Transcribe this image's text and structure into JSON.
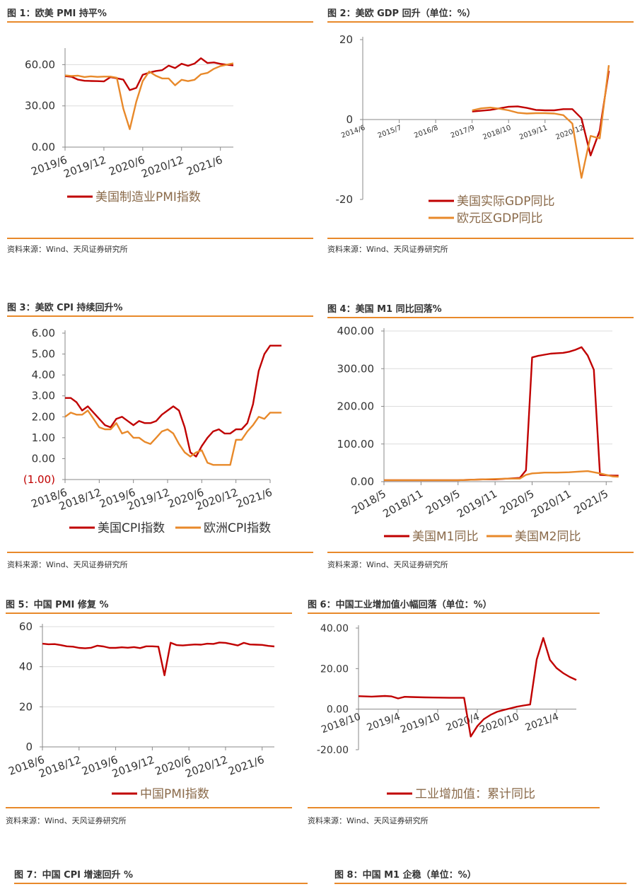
{
  "source_text": "资料来源：Wind、天风证券研究所",
  "colors": {
    "red": "#c00000",
    "orange": "#e8892a",
    "axis": "#888888",
    "grid": "#d9d9d9",
    "neg": "#c00000"
  },
  "figures": {
    "f1": {
      "title": "图 1：欧美 PMI 持平%"
    },
    "f2": {
      "title": "图 2：美欧 GDP 回升（单位：%）"
    },
    "f3": {
      "title": "图 3：美欧 CPI 持续回升%"
    },
    "f4": {
      "title": "图 4：美国 M1 同比回落%"
    },
    "f5": {
      "title": "图 5：中国 PMI 修复 %"
    },
    "f6": {
      "title": "图 6：中国工业增加值小幅回落（单位：%）"
    },
    "f7": {
      "title": "图 7：中国 CPI 增速回升 %"
    },
    "f8": {
      "title": "图 8：中国 M1 企稳（单位：%）"
    }
  },
  "chart_data": [
    {
      "id": "f1",
      "type": "line",
      "xlim": [
        0,
        26
      ],
      "ylim": [
        0,
        70
      ],
      "ytick_values": [
        0,
        30,
        60
      ],
      "ytick_labels": [
        "0.00",
        "30.00",
        "60.00"
      ],
      "xtick_positions": [
        0,
        6,
        12,
        18,
        24
      ],
      "xtick_labels": [
        "2019/6",
        "2019/12",
        "2020/6",
        "2020/12",
        "2021/6"
      ],
      "grid": true,
      "legend": "bottom",
      "series": [
        {
          "name": "美国制造业PMI指数",
          "color": "#c00000",
          "x": [
            0,
            1,
            2,
            3,
            4,
            5,
            6,
            7,
            8,
            9,
            10,
            11,
            12,
            13,
            14,
            15,
            16,
            17,
            18,
            19,
            20,
            21,
            22,
            23,
            24,
            25,
            26
          ],
          "values": [
            51.7,
            51.2,
            49.1,
            48.3,
            48.1,
            48.0,
            47.8,
            50.9,
            50.1,
            49.1,
            41.5,
            43.1,
            52.6,
            54.2,
            55.4,
            56.0,
            59.3,
            57.5,
            60.7,
            59.2,
            60.8,
            64.7,
            61.2,
            61.6,
            60.6,
            59.9,
            59.5
          ]
        },
        {
          "name": "",
          "color": "#e8892a",
          "x": [
            0,
            1,
            2,
            3,
            4,
            5,
            6,
            7,
            8,
            9,
            10,
            11,
            12,
            13,
            14,
            15,
            16,
            17,
            18,
            19,
            20,
            21,
            22,
            23,
            24,
            25,
            26
          ],
          "values": [
            52.2,
            51.8,
            52.0,
            51.0,
            51.5,
            51.1,
            51.3,
            51.3,
            50.5,
            28.0,
            13.0,
            33.0,
            48.0,
            55.0,
            52.0,
            50.0,
            50.0,
            45.0,
            49.0,
            48.0,
            49.0,
            53.0,
            54.0,
            57.0,
            59.0,
            60.0,
            61.0
          ]
        }
      ]
    },
    {
      "id": "f2",
      "type": "line",
      "xlim": [
        0,
        27
      ],
      "ylim": [
        -20,
        20
      ],
      "ytick_values": [
        -20,
        0,
        20
      ],
      "ytick_labels": [
        "-20",
        "0",
        "20"
      ],
      "xtick_positions": [
        0,
        4,
        8,
        12,
        16,
        20,
        24
      ],
      "xtick_labels": [
        "2014/6",
        "2015/7",
        "2016/8",
        "2017/9",
        "2018/10",
        "2019/11",
        "2020/12"
      ],
      "grid": false,
      "legend": "bottom-center",
      "series": [
        {
          "name": "美国实际GDP同比",
          "color": "#c00000",
          "x": [
            12,
            13,
            14,
            15,
            16,
            17,
            18,
            19,
            20,
            21,
            22,
            23,
            24,
            25,
            26,
            27
          ],
          "values": [
            2.0,
            2.2,
            2.4,
            2.8,
            3.2,
            3.3,
            2.9,
            2.4,
            2.3,
            2.3,
            2.6,
            2.6,
            0.3,
            -9.0,
            -2.8,
            12.2
          ]
        },
        {
          "name": "欧元区GDP同比",
          "color": "#e8892a",
          "x": [
            12,
            13,
            14,
            15,
            16,
            17,
            18,
            19,
            20,
            21,
            22,
            23,
            24,
            25,
            26,
            27
          ],
          "values": [
            2.3,
            2.8,
            3.0,
            2.7,
            2.3,
            1.7,
            1.5,
            1.6,
            1.6,
            1.5,
            1.1,
            -1.0,
            -14.6,
            -4.1,
            -4.7,
            13.6
          ]
        }
      ]
    },
    {
      "id": "f3",
      "type": "line",
      "xlim": [
        0,
        36
      ],
      "ylim": [
        -1,
        6
      ],
      "ytick_values": [
        -1,
        0,
        1,
        2,
        3,
        4,
        5,
        6
      ],
      "ytick_labels": [
        "(1.00)",
        "0.00",
        "1.00",
        "2.00",
        "3.00",
        "4.00",
        "5.00",
        "6.00"
      ],
      "xtick_positions": [
        0,
        6,
        12,
        18,
        24,
        30,
        36
      ],
      "xtick_labels": [
        "2018/6",
        "2018/12",
        "2019/6",
        "2019/12",
        "2020/6",
        "2020/12",
        "2021/6"
      ],
      "grid": false,
      "legend": "bottom",
      "series": [
        {
          "name": "美国CPI指数",
          "color": "#c00000",
          "x": [
            0,
            1,
            2,
            3,
            4,
            5,
            6,
            7,
            8,
            9,
            10,
            11,
            12,
            13,
            14,
            15,
            16,
            17,
            18,
            19,
            20,
            21,
            22,
            23,
            24,
            25,
            26,
            27,
            28,
            29,
            30,
            31,
            32,
            33,
            34,
            35,
            36,
            37,
            38
          ],
          "values": [
            2.9,
            2.9,
            2.7,
            2.3,
            2.5,
            2.2,
            1.9,
            1.6,
            1.5,
            1.9,
            2.0,
            1.8,
            1.6,
            1.8,
            1.7,
            1.7,
            1.8,
            2.1,
            2.3,
            2.5,
            2.3,
            1.5,
            0.3,
            0.1,
            0.6,
            1.0,
            1.3,
            1.4,
            1.2,
            1.2,
            1.4,
            1.4,
            1.7,
            2.6,
            4.2,
            5.0,
            5.4,
            5.4,
            5.4
          ]
        },
        {
          "name": "欧洲CPI指数",
          "color": "#e8892a",
          "x": [
            0,
            1,
            2,
            3,
            4,
            5,
            6,
            7,
            8,
            9,
            10,
            11,
            12,
            13,
            14,
            15,
            16,
            17,
            18,
            19,
            20,
            21,
            22,
            23,
            24,
            25,
            26,
            27,
            28,
            29,
            30,
            31,
            32,
            33,
            34,
            35,
            36,
            37,
            38
          ],
          "values": [
            2.0,
            2.2,
            2.1,
            2.1,
            2.3,
            1.9,
            1.5,
            1.4,
            1.4,
            1.7,
            1.2,
            1.3,
            1.0,
            1.0,
            0.8,
            0.7,
            1.0,
            1.3,
            1.4,
            1.2,
            0.7,
            0.3,
            0.1,
            0.3,
            0.4,
            -0.2,
            -0.3,
            -0.3,
            -0.3,
            -0.3,
            0.9,
            0.9,
            1.3,
            1.6,
            2.0,
            1.9,
            2.2,
            2.2,
            2.2
          ]
        }
      ]
    },
    {
      "id": "f4",
      "type": "line",
      "xlim": [
        0,
        37
      ],
      "ylim": [
        0,
        400
      ],
      "ytick_values": [
        0,
        100,
        200,
        300,
        400
      ],
      "ytick_labels": [
        "0.00",
        "100.00",
        "200.00",
        "300.00",
        "400.00"
      ],
      "xtick_positions": [
        0,
        6,
        12,
        18,
        24,
        30,
        36
      ],
      "xtick_labels": [
        "2018/5",
        "2018/11",
        "2019/5",
        "2019/11",
        "2020/5",
        "2020/11",
        "2021/5"
      ],
      "grid": true,
      "legend": "bottom",
      "series": [
        {
          "name": "美国M1同比",
          "color": "#c00000",
          "x": [
            0,
            2,
            4,
            6,
            8,
            10,
            12,
            14,
            16,
            18,
            20,
            22,
            23,
            24,
            25,
            26,
            27,
            28,
            29,
            30,
            31,
            32,
            33,
            34,
            35,
            36,
            37,
            38
          ],
          "values": [
            4,
            4,
            4,
            4,
            4,
            4,
            4,
            5,
            6,
            6,
            8,
            10,
            30,
            330,
            334,
            337,
            340,
            341,
            342,
            345,
            350,
            357,
            335,
            297,
            18,
            17,
            16,
            16
          ]
        },
        {
          "name": "美国M2同比",
          "color": "#e8892a",
          "x": [
            0,
            4,
            8,
            12,
            16,
            20,
            22,
            23,
            24,
            25,
            26,
            28,
            30,
            32,
            33,
            34,
            35,
            36,
            37,
            38
          ],
          "values": [
            4,
            4,
            4,
            4,
            6,
            8,
            8,
            18,
            22,
            23,
            24,
            24,
            25,
            27,
            28,
            25,
            22,
            18,
            14,
            13
          ]
        }
      ]
    },
    {
      "id": "f5",
      "type": "line",
      "xlim": [
        0,
        38
      ],
      "ylim": [
        0,
        60
      ],
      "ytick_values": [
        0,
        20,
        40,
        60
      ],
      "ytick_labels": [
        "0",
        "20",
        "40",
        "60"
      ],
      "xtick_positions": [
        0,
        6,
        12,
        18,
        24,
        30,
        36
      ],
      "xtick_labels": [
        "2018/6",
        "2018/12",
        "2019/6",
        "2019/12",
        "2020/6",
        "2020/12",
        "2021/6"
      ],
      "grid": true,
      "legend": "bottom",
      "series": [
        {
          "name": "中国PMI指数",
          "color": "#c00000",
          "x": [
            0,
            1,
            2,
            3,
            4,
            5,
            6,
            7,
            8,
            9,
            10,
            11,
            12,
            13,
            14,
            15,
            16,
            17,
            18,
            19,
            20,
            21,
            22,
            23,
            24,
            25,
            26,
            27,
            28,
            29,
            30,
            31,
            32,
            33,
            34,
            35,
            36,
            37,
            38
          ],
          "values": [
            51.5,
            51.2,
            51.3,
            50.8,
            50.2,
            50.0,
            49.4,
            49.2,
            49.5,
            50.5,
            50.1,
            49.4,
            49.4,
            49.7,
            49.5,
            49.8,
            49.3,
            50.2,
            50.2,
            50.0,
            35.7,
            52.0,
            50.8,
            50.6,
            50.9,
            51.1,
            51.0,
            51.5,
            51.4,
            52.1,
            51.9,
            51.3,
            50.6,
            51.9,
            51.1,
            51.0,
            50.9,
            50.4,
            50.1
          ]
        }
      ]
    },
    {
      "id": "f6",
      "type": "line",
      "xlim": [
        0,
        33
      ],
      "ylim": [
        -20,
        40
      ],
      "ytick_values": [
        -20,
        0,
        20,
        40
      ],
      "ytick_labels": [
        "-20.00",
        "0.00",
        "20.00",
        "40.00"
      ],
      "xtick_positions": [
        0,
        6,
        12,
        18,
        24,
        30
      ],
      "xtick_labels": [
        "2018/10",
        "2019/4",
        "2019/10",
        "2020/4",
        "2020/10",
        "2021/4"
      ],
      "grid": false,
      "legend": "bottom",
      "series": [
        {
          "name": "工业增加值：累计同比",
          "color": "#c00000",
          "x": [
            0,
            2,
            4,
            5,
            6,
            7,
            8,
            10,
            12,
            14,
            16,
            17,
            18,
            19,
            20,
            21,
            22,
            23,
            24,
            25,
            26,
            27,
            28,
            29,
            30,
            31,
            32,
            33
          ],
          "values": [
            6.4,
            6.2,
            6.5,
            6.3,
            5.3,
            6.1,
            6.0,
            5.8,
            5.7,
            5.6,
            5.6,
            -13.5,
            -8.4,
            -4.9,
            -2.8,
            -1.3,
            -0.4,
            0.4,
            1.2,
            1.8,
            2.3,
            24.5,
            35.1,
            24.3,
            20.3,
            17.8,
            15.9,
            14.4
          ]
        }
      ]
    }
  ],
  "legend_text": {
    "f1": [
      "美国制造业PMI指数"
    ],
    "f2": [
      "美国实际GDP同比",
      "欧元区GDP同比"
    ],
    "f3": [
      "美国CPI指数",
      "欧洲CPI指数"
    ],
    "f4": [
      "美国M1同比",
      "美国M2同比"
    ],
    "f5": [
      "中国PMI指数"
    ],
    "f6": [
      "工业增加值：累计同比"
    ]
  }
}
